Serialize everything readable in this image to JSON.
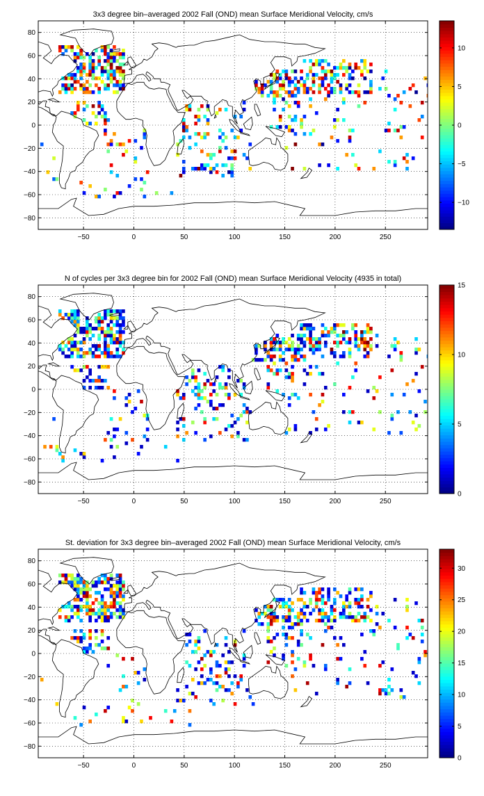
{
  "colors": {
    "land_outline": "#000000",
    "grid": "#000000",
    "colormap": "jet"
  },
  "chart_data": [
    {
      "type": "heatmap",
      "title": "3x3 degree bin–averaged 2002 Fall (OND) mean Surface Meridional Velocity, cm/s",
      "xlabel": "",
      "ylabel": "",
      "xlim": [
        -95,
        292
      ],
      "ylim": [
        -90,
        90
      ],
      "xticks": [
        "−50",
        "0",
        "50",
        "100",
        "150",
        "200",
        "250"
      ],
      "xtick_values": [
        -50,
        0,
        50,
        100,
        150,
        200,
        250
      ],
      "yticks": [
        "−80",
        "−60",
        "−40",
        "−20",
        "0",
        "20",
        "40",
        "60",
        "80"
      ],
      "ytick_values": [
        -80,
        -60,
        -40,
        -20,
        0,
        20,
        40,
        60,
        80
      ],
      "grid": true,
      "colorbar": {
        "range": [
          -13.5,
          13.5
        ],
        "tick_values": [
          -10,
          -5,
          0,
          5,
          10
        ],
        "tick_labels": [
          "−10",
          "−5",
          "0",
          "5",
          "10"
        ],
        "orientation": "vertical",
        "placement": "right"
      },
      "cells": {
        "bin_deg": 3,
        "seed": 11,
        "pattern": "velocity"
      }
    },
    {
      "type": "heatmap",
      "title": "N of cycles per 3x3 degree bin for 2002 Fall (OND) mean Surface Meridional Velocity (4935 in total)",
      "xlabel": "",
      "ylabel": "",
      "xlim": [
        -95,
        292
      ],
      "ylim": [
        -90,
        90
      ],
      "xticks": [
        "−50",
        "0",
        "50",
        "100",
        "150",
        "200",
        "250"
      ],
      "xtick_values": [
        -50,
        0,
        50,
        100,
        150,
        200,
        250
      ],
      "yticks": [
        "−80",
        "−60",
        "−40",
        "−20",
        "0",
        "20",
        "40",
        "60",
        "80"
      ],
      "ytick_values": [
        -80,
        -60,
        -40,
        -20,
        0,
        20,
        40,
        60,
        80
      ],
      "grid": true,
      "colorbar": {
        "range": [
          0,
          15
        ],
        "tick_values": [
          0,
          5,
          10,
          15
        ],
        "tick_labels": [
          "0",
          "5",
          "10",
          "15"
        ],
        "orientation": "vertical",
        "placement": "right"
      },
      "cells": {
        "bin_deg": 3,
        "seed": 23,
        "pattern": "count"
      }
    },
    {
      "type": "heatmap",
      "title": "St. deviation for 3x3 degree bin–averaged 2002 Fall (OND) mean Surface Meridional Velocity, cm/s",
      "xlabel": "",
      "ylabel": "",
      "xlim": [
        -95,
        292
      ],
      "ylim": [
        -90,
        90
      ],
      "xticks": [
        "−50",
        "0",
        "50",
        "100",
        "150",
        "200",
        "250"
      ],
      "xtick_values": [
        -50,
        0,
        50,
        100,
        150,
        200,
        250
      ],
      "yticks": [
        "−80",
        "−60",
        "−40",
        "−20",
        "0",
        "20",
        "40",
        "60",
        "80"
      ],
      "ytick_values": [
        -80,
        -60,
        -40,
        -20,
        0,
        20,
        40,
        60,
        80
      ],
      "grid": true,
      "colorbar": {
        "range": [
          0,
          33
        ],
        "tick_values": [
          0,
          5,
          10,
          15,
          20,
          25,
          30
        ],
        "tick_labels": [
          "0",
          "5",
          "10",
          "15",
          "20",
          "25",
          "30"
        ],
        "orientation": "vertical",
        "placement": "right"
      },
      "cells": {
        "bin_deg": 3,
        "seed": 37,
        "pattern": "stdev"
      }
    }
  ]
}
